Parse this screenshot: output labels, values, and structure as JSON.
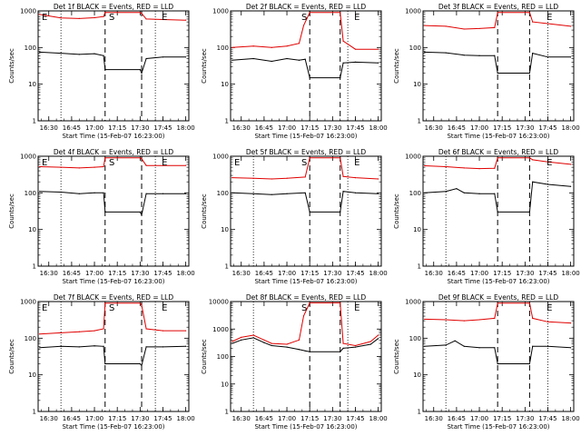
{
  "figure": {
    "background": "#ffffff",
    "colors": {
      "events": "#000000",
      "lld": "#e00000",
      "axes": "#000000"
    }
  },
  "chart_data": [
    {
      "type": "line",
      "title": "Det 1f BLACK = Events, RED = LLD",
      "xlabel": "Start Time (15-Feb-07 16:23:00)",
      "ylabel": "Counts/sec",
      "yscale": "log",
      "ylim": [
        1,
        1000
      ],
      "xlim": [
        "16:23",
        "18:02"
      ],
      "ytick_labels": [
        "1",
        "10",
        "100",
        "1000"
      ],
      "xtick_labels": [
        "16:30",
        "16:45",
        "17:00",
        "17:15",
        "17:30",
        "17:45",
        "18:00"
      ],
      "grid": false,
      "annotations": [
        "E",
        "S",
        "E"
      ],
      "marker_lines": {
        "dotted": [
          "16:38",
          "17:40"
        ],
        "dashed": [
          "17:07",
          "17:31"
        ]
      },
      "series": [
        {
          "name": "LLD",
          "color": "#e00000",
          "x": [
            "16:24",
            "16:38",
            "16:50",
            "17:00",
            "17:06",
            "17:07",
            "17:30",
            "17:31",
            "17:34",
            "17:45",
            "18:00"
          ],
          "y": [
            800,
            640,
            620,
            650,
            700,
            900,
            900,
            850,
            600,
            580,
            560
          ]
        },
        {
          "name": "Events",
          "color": "#000000",
          "x": [
            "16:24",
            "16:38",
            "16:50",
            "17:00",
            "17:06",
            "17:07",
            "17:30",
            "17:31",
            "17:34",
            "17:45",
            "18:00"
          ],
          "y": [
            75,
            70,
            65,
            68,
            60,
            25,
            25,
            20,
            50,
            55,
            55
          ]
        }
      ]
    },
    {
      "type": "line",
      "title": "Det 2f BLACK = Events, RED = LLD",
      "xlabel": "Start Time (15-Feb-07 16:23:00)",
      "ylabel": "Counts/sec",
      "yscale": "log",
      "ylim": [
        1,
        1000
      ],
      "xlim": [
        "16:23",
        "18:02"
      ],
      "ytick_labels": [
        "1",
        "10",
        "100",
        "1000"
      ],
      "xtick_labels": [
        "16:30",
        "16:45",
        "17:00",
        "17:15",
        "17:30",
        "17:45",
        "18:00"
      ],
      "grid": false,
      "annotations": [
        "S",
        "E"
      ],
      "marker_lines": {
        "dotted": [
          "17:40"
        ],
        "dashed": [
          "17:15",
          "17:35"
        ]
      },
      "series": [
        {
          "name": "LLD",
          "color": "#e00000",
          "x": [
            "16:24",
            "16:38",
            "16:50",
            "17:00",
            "17:08",
            "17:11",
            "17:15",
            "17:35",
            "17:37",
            "17:45",
            "18:00"
          ],
          "y": [
            100,
            110,
            100,
            110,
            130,
            400,
            900,
            900,
            150,
            90,
            90
          ]
        },
        {
          "name": "Events",
          "color": "#000000",
          "x": [
            "16:24",
            "16:38",
            "16:50",
            "17:00",
            "17:08",
            "17:12",
            "17:15",
            "17:35",
            "17:37",
            "17:45",
            "18:00"
          ],
          "y": [
            45,
            50,
            42,
            50,
            45,
            48,
            15,
            15,
            38,
            40,
            38
          ]
        }
      ]
    },
    {
      "type": "line",
      "title": "Det 3f BLACK = Events, RED = LLD",
      "xlabel": "Start Time (15-Feb-07 16:23:00)",
      "ylabel": "Counts/sec",
      "yscale": "log",
      "ylim": [
        1,
        1000
      ],
      "xlim": [
        "16:23",
        "18:02"
      ],
      "ytick_labels": [
        "1",
        "10",
        "100",
        "1000"
      ],
      "xtick_labels": [
        "16:30",
        "16:45",
        "17:00",
        "17:15",
        "17:30",
        "17:45",
        "18:00"
      ],
      "grid": false,
      "annotations": [
        "E"
      ],
      "marker_lines": {
        "dotted": [
          "17:45"
        ],
        "dashed": [
          "17:12",
          "17:33"
        ]
      },
      "series": [
        {
          "name": "LLD",
          "color": "#e00000",
          "x": [
            "16:24",
            "16:38",
            "16:50",
            "17:00",
            "17:10",
            "17:12",
            "17:33",
            "17:35",
            "17:45",
            "18:00"
          ],
          "y": [
            400,
            380,
            320,
            330,
            350,
            900,
            900,
            500,
            450,
            380
          ]
        },
        {
          "name": "Events",
          "color": "#000000",
          "x": [
            "16:24",
            "16:38",
            "16:50",
            "17:00",
            "17:10",
            "17:12",
            "17:33",
            "17:35",
            "17:45",
            "18:00"
          ],
          "y": [
            75,
            72,
            62,
            60,
            60,
            20,
            20,
            70,
            55,
            55
          ]
        }
      ]
    },
    {
      "type": "line",
      "title": "Det 4f BLACK = Events, RED = LLD",
      "xlabel": "Start Time (15-Feb-07 16:23:00)",
      "ylabel": "Counts/sec",
      "yscale": "log",
      "ylim": [
        1,
        1000
      ],
      "xlim": [
        "16:23",
        "18:02"
      ],
      "ytick_labels": [
        "1",
        "10",
        "100",
        "1000"
      ],
      "xtick_labels": [
        "16:30",
        "16:45",
        "17:00",
        "17:15",
        "17:30",
        "17:45",
        "18:00"
      ],
      "grid": false,
      "annotations": [
        "E",
        "S",
        "E"
      ],
      "marker_lines": {
        "dotted": [
          "16:38",
          "17:40"
        ],
        "dashed": [
          "17:07",
          "17:31"
        ]
      },
      "series": [
        {
          "name": "LLD",
          "color": "#e00000",
          "x": [
            "16:24",
            "16:38",
            "16:50",
            "17:00",
            "17:06",
            "17:07",
            "17:30",
            "17:31",
            "17:34",
            "17:45",
            "18:00"
          ],
          "y": [
            520,
            500,
            480,
            500,
            520,
            900,
            900,
            850,
            560,
            560,
            560
          ]
        },
        {
          "name": "Events",
          "color": "#000000",
          "x": [
            "16:24",
            "16:38",
            "16:50",
            "17:00",
            "17:06",
            "17:07",
            "17:30",
            "17:31",
            "17:34",
            "17:45",
            "18:00"
          ],
          "y": [
            110,
            105,
            95,
            100,
            100,
            30,
            30,
            25,
            95,
            95,
            95
          ]
        }
      ]
    },
    {
      "type": "line",
      "title": "Det 5f BLACK = Events, RED = LLD",
      "xlabel": "Start Time (15-Feb-07 16:23:00)",
      "ylabel": "Counts/sec",
      "yscale": "log",
      "ylim": [
        1,
        1000
      ],
      "xlim": [
        "16:23",
        "18:02"
      ],
      "ytick_labels": [
        "1",
        "10",
        "100",
        "1000"
      ],
      "xtick_labels": [
        "16:30",
        "16:45",
        "17:00",
        "17:15",
        "17:30",
        "17:45",
        "18:00"
      ],
      "grid": false,
      "annotations": [
        "E",
        "S",
        "E"
      ],
      "marker_lines": {
        "dotted": [
          "16:38",
          "17:40"
        ],
        "dashed": [
          "17:15",
          "17:35"
        ]
      },
      "series": [
        {
          "name": "LLD",
          "color": "#e00000",
          "x": [
            "16:24",
            "16:38",
            "16:50",
            "17:00",
            "17:12",
            "17:15",
            "17:35",
            "17:37",
            "17:45",
            "18:00"
          ],
          "y": [
            260,
            250,
            240,
            250,
            270,
            900,
            900,
            280,
            260,
            240
          ]
        },
        {
          "name": "Events",
          "color": "#000000",
          "x": [
            "16:24",
            "16:38",
            "16:50",
            "17:00",
            "17:12",
            "17:15",
            "17:35",
            "17:37",
            "17:45",
            "18:00"
          ],
          "y": [
            100,
            95,
            90,
            95,
            100,
            30,
            30,
            110,
            100,
            95
          ]
        }
      ]
    },
    {
      "type": "line",
      "title": "Det 6f BLACK = Events, RED = LLD",
      "xlabel": "Start Time (15-Feb-07 16:23:00)",
      "ylabel": "Counts/sec",
      "yscale": "log",
      "ylim": [
        1,
        1000
      ],
      "xlim": [
        "16:23",
        "18:02"
      ],
      "ytick_labels": [
        "1",
        "10",
        "100",
        "1000"
      ],
      "xtick_labels": [
        "16:30",
        "16:45",
        "17:00",
        "17:15",
        "17:30",
        "17:45",
        "18:00"
      ],
      "grid": false,
      "annotations": [
        "E"
      ],
      "marker_lines": {
        "dotted": [
          "16:38",
          "17:45"
        ],
        "dashed": [
          "17:12",
          "17:33"
        ]
      },
      "series": [
        {
          "name": "LLD",
          "color": "#e00000",
          "x": [
            "16:24",
            "16:38",
            "16:50",
            "17:00",
            "17:10",
            "17:12",
            "17:33",
            "17:35",
            "17:45",
            "18:00"
          ],
          "y": [
            550,
            520,
            480,
            460,
            470,
            900,
            900,
            800,
            700,
            600
          ]
        },
        {
          "name": "Events",
          "color": "#000000",
          "x": [
            "16:24",
            "16:38",
            "16:45",
            "16:50",
            "17:00",
            "17:10",
            "17:12",
            "17:33",
            "17:35",
            "17:45",
            "18:00"
          ],
          "y": [
            100,
            110,
            130,
            100,
            95,
            95,
            30,
            30,
            200,
            170,
            150
          ]
        }
      ]
    },
    {
      "type": "line",
      "title": "Det 7f BLACK = Events, RED = LLD",
      "xlabel": "Start Time (15-Feb-07 16:23:00)",
      "ylabel": "Counts/sec",
      "yscale": "log",
      "ylim": [
        1,
        1000
      ],
      "xlim": [
        "16:23",
        "18:02"
      ],
      "ytick_labels": [
        "1",
        "10",
        "100",
        "1000"
      ],
      "xtick_labels": [
        "16:30",
        "16:45",
        "17:00",
        "17:15",
        "17:30",
        "17:45",
        "18:00"
      ],
      "grid": false,
      "annotations": [
        "E",
        "S",
        "E"
      ],
      "marker_lines": {
        "dotted": [
          "16:38",
          "17:40"
        ],
        "dashed": [
          "17:07",
          "17:31"
        ]
      },
      "series": [
        {
          "name": "LLD",
          "color": "#e00000",
          "x": [
            "16:24",
            "16:38",
            "16:50",
            "17:00",
            "17:06",
            "17:07",
            "17:30",
            "17:31",
            "17:34",
            "17:45",
            "18:00"
          ],
          "y": [
            130,
            140,
            150,
            160,
            180,
            900,
            900,
            800,
            180,
            160,
            160
          ]
        },
        {
          "name": "Events",
          "color": "#000000",
          "x": [
            "16:24",
            "16:38",
            "16:50",
            "17:00",
            "17:06",
            "17:07",
            "17:30",
            "17:31",
            "17:34",
            "17:45",
            "18:00"
          ],
          "y": [
            55,
            60,
            58,
            62,
            60,
            20,
            20,
            18,
            58,
            58,
            60
          ]
        }
      ]
    },
    {
      "type": "line",
      "title": "Det 8f BLACK = Events, RED = LLD",
      "xlabel": "Start Time (15-Feb-07 16:23:00)",
      "ylabel": "Counts/sec",
      "yscale": "log",
      "ylim": [
        1,
        10000
      ],
      "xlim": [
        "16:23",
        "18:02"
      ],
      "ytick_labels": [
        "1",
        "10",
        "100",
        "1000",
        "10000"
      ],
      "xtick_labels": [
        "16:30",
        "16:45",
        "17:00",
        "17:15",
        "17:30",
        "17:45",
        "18:00"
      ],
      "grid": false,
      "annotations": [
        "S",
        "E"
      ],
      "marker_lines": {
        "dotted": [
          "16:38",
          "17:40"
        ],
        "dashed": [
          "17:15",
          "17:35"
        ]
      },
      "series": [
        {
          "name": "LLD",
          "color": "#e00000",
          "x": [
            "16:24",
            "16:30",
            "16:38",
            "16:45",
            "16:50",
            "17:00",
            "17:08",
            "17:11",
            "17:15",
            "17:35",
            "17:37",
            "17:45",
            "17:55",
            "18:00"
          ],
          "y": [
            350,
            500,
            600,
            400,
            300,
            280,
            400,
            3000,
            9000,
            9000,
            300,
            250,
            350,
            600
          ]
        },
        {
          "name": "Events",
          "color": "#000000",
          "x": [
            "16:24",
            "16:30",
            "16:38",
            "16:45",
            "16:50",
            "17:00",
            "17:08",
            "17:12",
            "17:15",
            "17:35",
            "17:37",
            "17:45",
            "17:55",
            "18:00"
          ],
          "y": [
            300,
            400,
            480,
            320,
            250,
            220,
            180,
            160,
            150,
            150,
            200,
            220,
            280,
            450
          ]
        }
      ]
    },
    {
      "type": "line",
      "title": "Det 9f BLACK = Events, RED = LLD",
      "xlabel": "Start Time (15-Feb-07 16:23:00)",
      "ylabel": "Counts/sec",
      "yscale": "log",
      "ylim": [
        1,
        1000
      ],
      "xlim": [
        "16:23",
        "18:02"
      ],
      "ytick_labels": [
        "1",
        "10",
        "100",
        "1000"
      ],
      "xtick_labels": [
        "16:30",
        "16:45",
        "17:00",
        "17:15",
        "17:30",
        "17:45",
        "18:00"
      ],
      "grid": false,
      "annotations": [
        "E"
      ],
      "marker_lines": {
        "dotted": [
          "16:38",
          "17:45"
        ],
        "dashed": [
          "17:12",
          "17:33"
        ]
      },
      "series": [
        {
          "name": "LLD",
          "color": "#e00000",
          "x": [
            "16:24",
            "16:38",
            "16:50",
            "17:00",
            "17:10",
            "17:12",
            "17:33",
            "17:35",
            "17:45",
            "18:00"
          ],
          "y": [
            330,
            320,
            300,
            320,
            350,
            900,
            900,
            350,
            280,
            260
          ]
        },
        {
          "name": "Events",
          "color": "#000000",
          "x": [
            "16:24",
            "16:38",
            "16:44",
            "16:50",
            "17:00",
            "17:10",
            "17:12",
            "17:33",
            "17:35",
            "17:45",
            "18:00"
          ],
          "y": [
            60,
            65,
            85,
            60,
            55,
            55,
            20,
            20,
            60,
            60,
            55
          ]
        }
      ]
    }
  ]
}
